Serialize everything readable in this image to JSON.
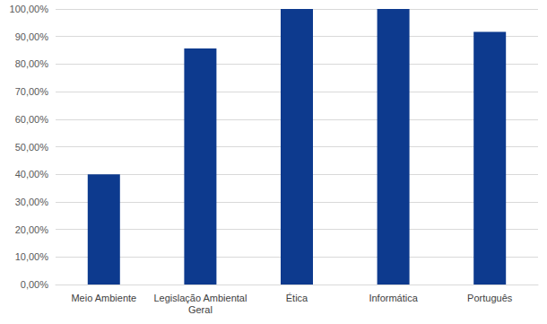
{
  "chart_data": {
    "type": "bar",
    "categories": [
      "Meio Ambiente",
      "Legislação Ambiental\nGeral",
      "Ética",
      "Informática",
      "Português"
    ],
    "values": [
      40,
      85.7,
      100,
      100,
      91.7
    ],
    "color": "#0d3a8e",
    "ylim": [
      0,
      100
    ],
    "yticks": [
      {
        "value": 0,
        "label": "0,00%"
      },
      {
        "value": 10,
        "label": "10,00%"
      },
      {
        "value": 20,
        "label": "20,00%"
      },
      {
        "value": 30,
        "label": "30,00%"
      },
      {
        "value": 40,
        "label": "40,00%"
      },
      {
        "value": 50,
        "label": "50,00%"
      },
      {
        "value": 60,
        "label": "60,00%"
      },
      {
        "value": 70,
        "label": "70,00%"
      },
      {
        "value": 80,
        "label": "80,00%"
      },
      {
        "value": 90,
        "label": "90,00%"
      },
      {
        "value": 100,
        "label": "100,00%"
      }
    ],
    "grid": true
  }
}
